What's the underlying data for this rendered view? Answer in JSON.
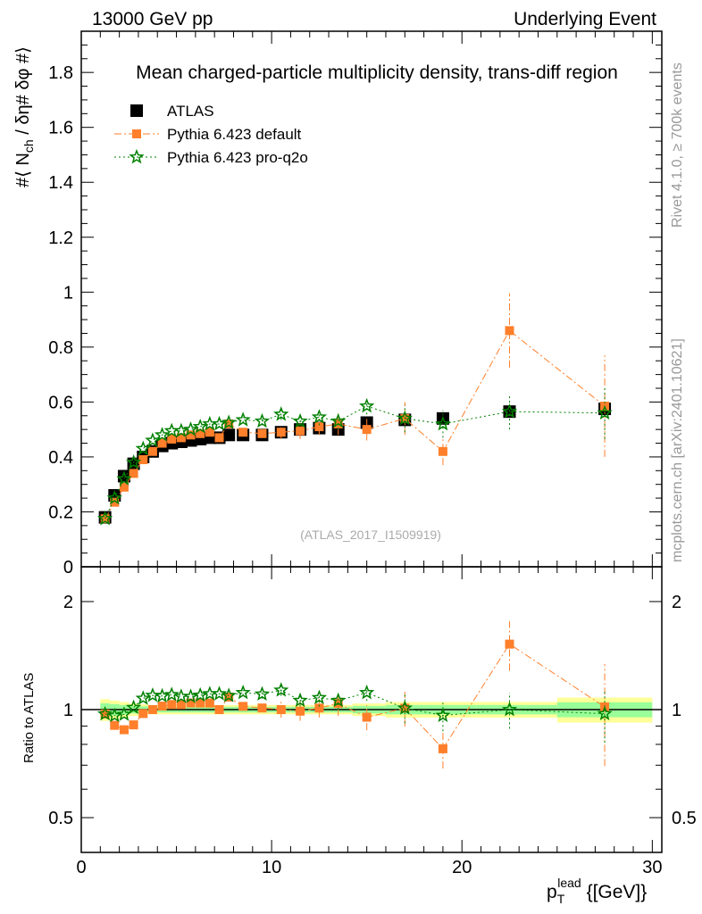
{
  "header": {
    "left": "13000 GeV pp",
    "right": "Underlying Event"
  },
  "side": {
    "rivet": "Rivet 4.1.0, ≥ 700k events",
    "mcplots": "mcplots.cern.ch [arXiv:2401.10621]"
  },
  "chart_data": {
    "type": "scatter",
    "title": "Mean charged-particle multiplicity density, trans-diff region",
    "watermark": "(ATLAS_2017_I1509919)",
    "ylabel": "#⟨ N_ch / δη# δφ #⟩",
    "ylabel_parts": {
      "a": "#⟨ N",
      "sub": "ch",
      "b": "/ δη# δφ #⟩"
    },
    "xlabel_parts": {
      "p": "p",
      "sub": "T",
      "sup": "lead",
      "unit": "{[GeV]}"
    },
    "ratio_ylabel": "Ratio to ATLAS",
    "xlim": [
      0,
      30.5
    ],
    "ylim": [
      0,
      1.95
    ],
    "ratio_ylim": [
      0.4,
      2.5
    ],
    "xticks": [
      "0",
      "10",
      "20",
      "30"
    ],
    "yticks": [
      "0",
      "0.2",
      "0.4",
      "0.6",
      "0.8",
      "1",
      "1.2",
      "1.4",
      "1.6",
      "1.8"
    ],
    "ratio_yticks": [
      "0.5",
      "1",
      "2"
    ],
    "x": [
      1.25,
      1.75,
      2.25,
      2.75,
      3.25,
      3.75,
      4.25,
      4.75,
      5.25,
      5.75,
      6.25,
      6.75,
      7.25,
      7.75,
      8.5,
      9.5,
      10.5,
      11.5,
      12.5,
      13.5,
      15,
      17,
      19,
      22.5,
      27.5
    ],
    "band_rel_err": [
      0.07,
      0.06,
      0.05,
      0.04,
      0.035,
      0.03,
      0.03,
      0.03,
      0.03,
      0.03,
      0.03,
      0.03,
      0.03,
      0.03,
      0.03,
      0.03,
      0.03,
      0.03,
      0.03,
      0.03,
      0.04,
      0.05,
      0.05,
      0.05,
      0.08
    ],
    "series": [
      {
        "name": "ATLAS",
        "color": "#000000",
        "marker": "square",
        "values": [
          0.18,
          0.26,
          0.33,
          0.375,
          0.4,
          0.42,
          0.44,
          0.45,
          0.455,
          0.46,
          0.465,
          0.47,
          0.47,
          0.48,
          0.48,
          0.48,
          0.49,
          0.5,
          0.505,
          0.5,
          0.525,
          0.535,
          0.54,
          0.565,
          0.575
        ]
      },
      {
        "name": "Pythia 6.423 default",
        "color": "#ff7f2a",
        "marker": "square-small",
        "dash": "8,3,2,3",
        "values": [
          0.175,
          0.235,
          0.29,
          0.34,
          0.39,
          0.42,
          0.45,
          0.465,
          0.47,
          0.48,
          0.485,
          0.49,
          0.47,
          0.52,
          0.49,
          0.485,
          0.49,
          0.495,
          0.51,
          0.52,
          0.5,
          0.54,
          0.42,
          0.86,
          0.585
        ],
        "errors": [
          0,
          0,
          0,
          0,
          0,
          0,
          0,
          0,
          0,
          0,
          0,
          0,
          0,
          0,
          0.01,
          0.01,
          0.025,
          0.03,
          0.03,
          0.04,
          0.04,
          0.06,
          0.05,
          0.135,
          0.185
        ]
      },
      {
        "name": "Pythia 6.423 pro-q2o",
        "color": "#008000",
        "marker": "star",
        "dash": "2,3",
        "values": [
          0.175,
          0.25,
          0.32,
          0.38,
          0.43,
          0.46,
          0.48,
          0.495,
          0.495,
          0.5,
          0.51,
          0.52,
          0.52,
          0.525,
          0.535,
          0.53,
          0.555,
          0.53,
          0.545,
          0.53,
          0.585,
          0.54,
          0.52,
          0.565,
          0.56
        ],
        "errors": [
          0,
          0,
          0,
          0,
          0,
          0,
          0,
          0,
          0,
          0,
          0,
          0,
          0,
          0,
          0.01,
          0.015,
          0.02,
          0.02,
          0.03,
          0.03,
          0.03,
          0.05,
          0.05,
          0.065,
          0.095
        ]
      }
    ],
    "legend_position": "top-left"
  }
}
